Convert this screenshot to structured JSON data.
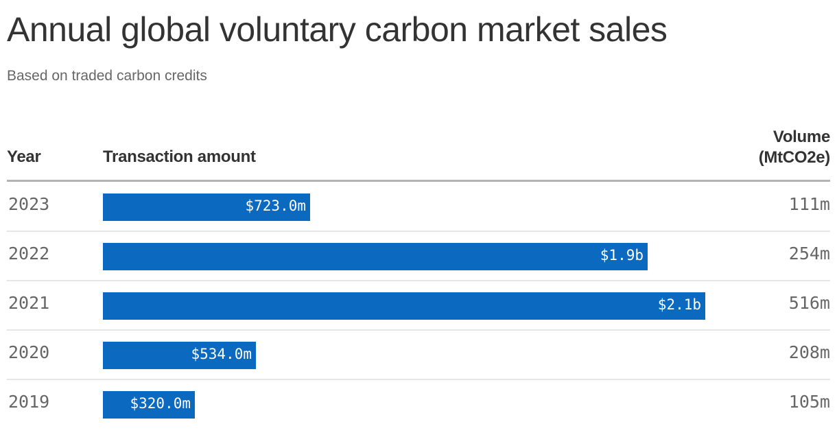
{
  "header": {
    "title": "Annual global voluntary carbon market sales",
    "subtitle": "Based on traded carbon credits"
  },
  "columns": {
    "year": "Year",
    "amount": "Transaction amount",
    "volume_line1": "Volume",
    "volume_line2": "(MtCO2e)"
  },
  "colors": {
    "bar": "#0b69c0",
    "text": "#333333",
    "muted": "#666666"
  },
  "rows": [
    {
      "year": "2023",
      "amount_label": "$723.0m",
      "amount_value": 723.0,
      "volume": "111m"
    },
    {
      "year": "2022",
      "amount_label": "$1.9b",
      "amount_value": 1900,
      "volume": "254m"
    },
    {
      "year": "2021",
      "amount_label": "$2.1b",
      "amount_value": 2100,
      "volume": "516m"
    },
    {
      "year": "2020",
      "amount_label": "$534.0m",
      "amount_value": 534.0,
      "volume": "208m"
    },
    {
      "year": "2019",
      "amount_label": "$320.0m",
      "amount_value": 320.0,
      "volume": "105m"
    }
  ],
  "chart_data": {
    "type": "bar",
    "orientation": "horizontal",
    "title": "Annual global voluntary carbon market sales",
    "subtitle": "Based on traded carbon credits",
    "categories": [
      "2023",
      "2022",
      "2021",
      "2020",
      "2019"
    ],
    "series": [
      {
        "name": "Transaction amount ($m)",
        "values": [
          723.0,
          1900,
          2100,
          534.0,
          320.0
        ],
        "labels": [
          "$723.0m",
          "$1.9b",
          "$2.1b",
          "$534.0m",
          "$320.0m"
        ]
      },
      {
        "name": "Volume (MtCO2e)",
        "values": [
          111,
          254,
          516,
          208,
          105
        ],
        "labels": [
          "111m",
          "254m",
          "516m",
          "208m",
          "105m"
        ]
      }
    ],
    "xlabel": "Transaction amount",
    "ylabel": "Year",
    "grid": false,
    "legend": "none"
  }
}
